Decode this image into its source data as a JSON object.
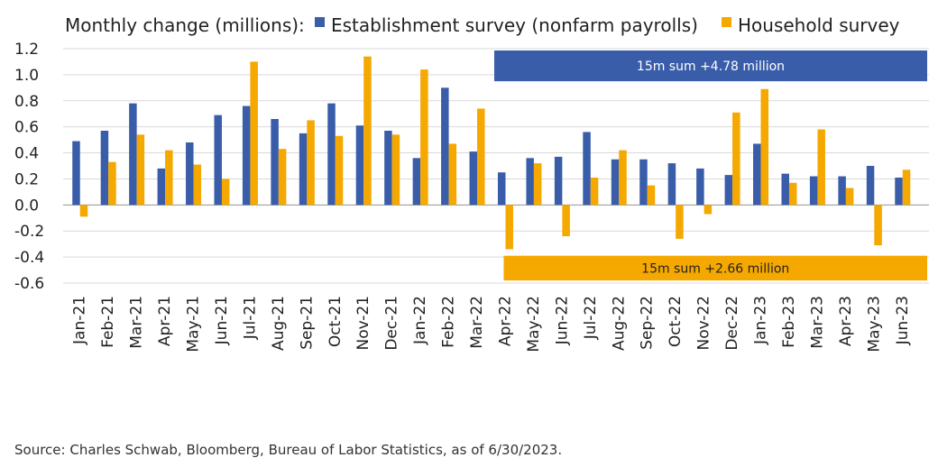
{
  "chart_data": {
    "type": "bar",
    "legend_title": "Monthly change (millions):",
    "categories": [
      "Jan-21",
      "Feb-21",
      "Mar-21",
      "Apr-21",
      "May-21",
      "Jun-21",
      "Jul-21",
      "Aug-21",
      "Sep-21",
      "Oct-21",
      "Nov-21",
      "Dec-21",
      "Jan-22",
      "Feb-22",
      "Mar-22",
      "Apr-22",
      "May-22",
      "Jun-22",
      "Jul-22",
      "Aug-22",
      "Sep-22",
      "Oct-22",
      "Nov-22",
      "Dec-22",
      "Jan-23",
      "Feb-23",
      "Mar-23",
      "Apr-23",
      "May-23",
      "Jun-23"
    ],
    "series": [
      {
        "name": "Establishment survey (nonfarm payrolls)",
        "color": "#3a5da9",
        "values": [
          0.49,
          0.57,
          0.78,
          0.28,
          0.48,
          0.69,
          0.76,
          0.66,
          0.55,
          0.78,
          0.61,
          0.57,
          0.36,
          0.9,
          0.41,
          0.25,
          0.36,
          0.37,
          0.56,
          0.35,
          0.35,
          0.32,
          0.28,
          0.23,
          0.47,
          0.24,
          0.22,
          0.22,
          0.3,
          0.21
        ]
      },
      {
        "name": "Household survey",
        "color": "#f5a800",
        "values": [
          -0.09,
          0.33,
          0.54,
          0.42,
          0.31,
          0.2,
          1.1,
          0.43,
          0.65,
          0.53,
          1.14,
          0.54,
          1.04,
          0.47,
          0.74,
          -0.34,
          0.32,
          -0.24,
          0.21,
          0.42,
          0.15,
          -0.26,
          -0.07,
          0.71,
          0.89,
          0.17,
          0.58,
          0.13,
          -0.31,
          0.27
        ]
      }
    ],
    "ylim": [
      -0.6,
      1.2
    ],
    "yticks": [
      -0.6,
      -0.4,
      -0.2,
      0.0,
      0.2,
      0.4,
      0.6,
      0.8,
      1.0,
      1.2
    ],
    "ytick_labels": [
      "-0.6",
      "-0.4",
      "-0.2",
      "0.0",
      "0.2",
      "0.4",
      "0.6",
      "0.8",
      "1.0",
      "1.2"
    ],
    "grid": true,
    "legend_position": "top",
    "annotations": [
      {
        "text": "15m sum +4.78 million",
        "color": "#3a5da9",
        "from": "Apr-22",
        "to": "Jun-23",
        "y_top": 1.2,
        "y_bottom": 0.95
      },
      {
        "text": "15m sum +2.66 million",
        "color": "#f5a800",
        "from": "Apr-22",
        "to": "Jun-23",
        "y_top": -0.39,
        "y_bottom": -0.58
      }
    ]
  },
  "source": "Source: Charles Schwab, Bloomberg, Bureau of Labor Statistics, as of 6/30/2023."
}
